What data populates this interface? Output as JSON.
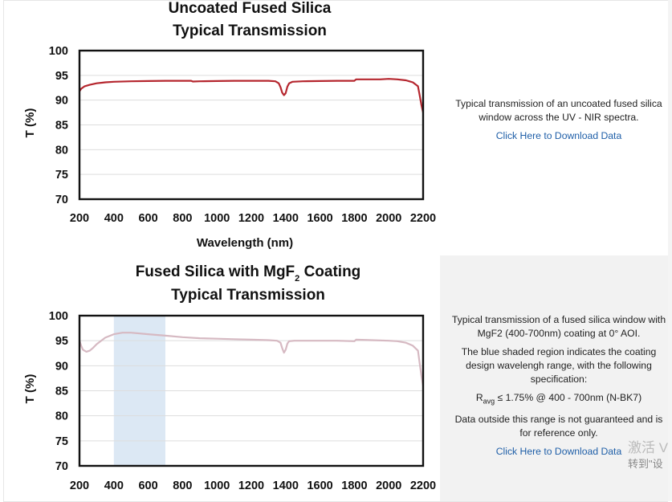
{
  "charts": [
    {
      "title_line1": "Uncoated Fused Silica",
      "title_line2": "Typical Transmission",
      "ylabel": "T (%)",
      "xlabel": "Wavelength (nm)",
      "description": [
        "Typical transmission of an uncoated fused silica window across the UV - NIR spectra."
      ],
      "link": "Click Here to Download Data"
    },
    {
      "title_line1": "Fused Silica with MgF",
      "title_sub": "2",
      "title_line1b": " Coating",
      "title_line2": "Typical Transmission",
      "ylabel": "T (%)",
      "xlabel": "",
      "description": [
        "Typical transmission of a fused silica window with MgF2 (400-700nm) coating at 0° AOI.",
        "The blue shaded region indicates the coating design wavelengh range, with the following specification:"
      ],
      "spec": {
        "r": "R",
        "sub": "avg",
        "rest": " ≤ 1.75% @ 400 - 700nm (N-BK7)"
      },
      "note": "Data outside this range is not guaranteed and is for reference only.",
      "link": "Click Here to Download Data"
    }
  ],
  "watermark": {
    "line1": "激活 V",
    "line2": "转到\"设"
  },
  "chart_data": [
    {
      "type": "line",
      "title": "Uncoated Fused Silica Typical Transmission",
      "xlabel": "Wavelength (nm)",
      "ylabel": "T (%)",
      "xlim": [
        200,
        2200
      ],
      "ylim": [
        70,
        100
      ],
      "xticks": [
        200,
        400,
        600,
        800,
        1000,
        1200,
        1400,
        1600,
        1800,
        2000,
        2200
      ],
      "yticks": [
        70,
        75,
        80,
        85,
        90,
        95,
        100
      ],
      "grid": true,
      "series": [
        {
          "color": "#b5262e",
          "x": [
            200,
            210,
            230,
            260,
            300,
            350,
            400,
            500,
            600,
            700,
            800,
            850,
            860,
            900,
            1000,
            1100,
            1200,
            1300,
            1340,
            1360,
            1370,
            1380,
            1390,
            1400,
            1410,
            1420,
            1440,
            1500,
            1600,
            1700,
            1800,
            1810,
            1820,
            1900,
            1950,
            2000,
            2050,
            2100,
            2140,
            2170,
            2180,
            2190,
            2200
          ],
          "y": [
            91.8,
            92.3,
            92.8,
            93.1,
            93.4,
            93.6,
            93.7,
            93.8,
            93.85,
            93.9,
            93.9,
            93.9,
            93.75,
            93.8,
            93.85,
            93.9,
            93.9,
            93.9,
            93.8,
            93.4,
            92.6,
            91.5,
            91.0,
            91.4,
            92.7,
            93.4,
            93.7,
            93.8,
            93.85,
            93.9,
            93.9,
            94.2,
            94.2,
            94.2,
            94.2,
            94.3,
            94.2,
            94.0,
            93.6,
            92.8,
            91.0,
            89.0,
            87.5
          ]
        }
      ]
    },
    {
      "type": "line",
      "title": "Fused Silica with MgF2 Coating Typical Transmission",
      "xlabel": "",
      "ylabel": "T (%)",
      "xlim": [
        200,
        2200
      ],
      "ylim": [
        70,
        100
      ],
      "xticks": [
        200,
        400,
        600,
        800,
        1000,
        1200,
        1400,
        1600,
        1800,
        2000,
        2200
      ],
      "yticks": [
        70,
        75,
        80,
        85,
        90,
        95,
        100
      ],
      "grid": true,
      "shaded_region": [
        400,
        700
      ],
      "shaded_color": "#dce8f4",
      "series": [
        {
          "color": "#d6b9c2",
          "x": [
            200,
            210,
            220,
            240,
            260,
            280,
            300,
            350,
            400,
            450,
            500,
            600,
            700,
            800,
            900,
            1000,
            1100,
            1200,
            1300,
            1350,
            1370,
            1380,
            1390,
            1400,
            1410,
            1420,
            1450,
            1500,
            1600,
            1700,
            1800,
            1810,
            1900,
            2000,
            2050,
            2100,
            2140,
            2170,
            2180,
            2190,
            2200
          ],
          "y": [
            95.0,
            94.0,
            93.2,
            92.8,
            93.0,
            93.6,
            94.3,
            95.6,
            96.3,
            96.6,
            96.6,
            96.3,
            96.0,
            95.7,
            95.5,
            95.4,
            95.3,
            95.2,
            95.1,
            95.0,
            94.6,
            93.5,
            92.6,
            93.2,
            94.4,
            94.9,
            95.0,
            95.0,
            95.0,
            95.0,
            94.9,
            95.2,
            95.1,
            95.0,
            94.9,
            94.6,
            94.0,
            93.0,
            90.5,
            88.0,
            86.0
          ]
        }
      ]
    }
  ]
}
